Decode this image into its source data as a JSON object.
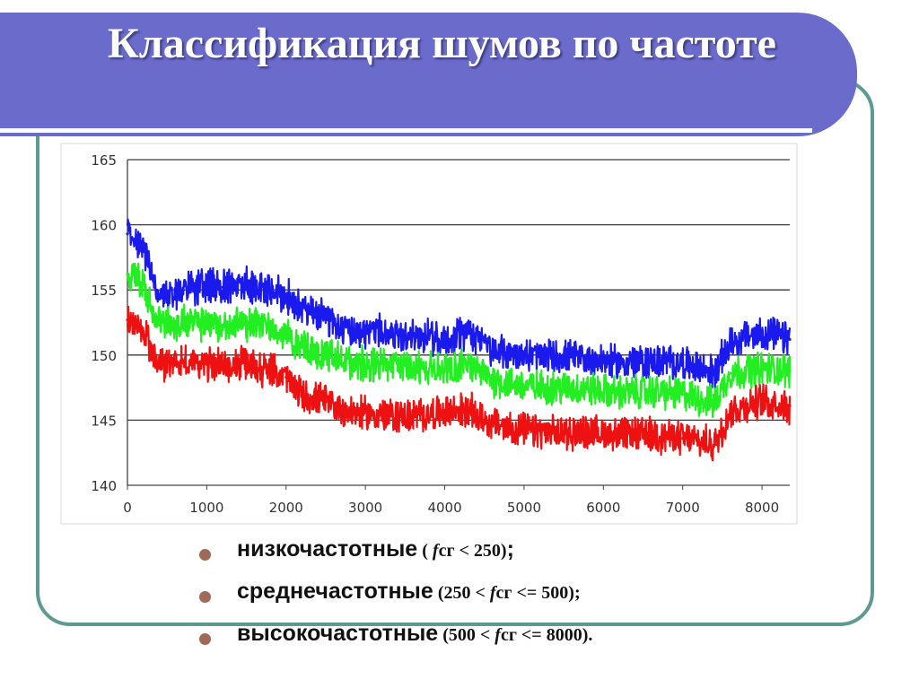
{
  "slide": {
    "title": "Классификация шумов по частоте"
  },
  "colors": {
    "title_bg": "#6b6bcc",
    "frame": "#5e9a92",
    "bullet": "#a06a58"
  },
  "chart_data": {
    "type": "line",
    "title": "",
    "xlabel": "",
    "ylabel": "",
    "xlim": [
      0,
      8350
    ],
    "ylim": [
      140,
      165
    ],
    "x_ticks": [
      "0",
      "1000",
      "2000",
      "3000",
      "4000",
      "5000",
      "6000",
      "7000",
      "8000"
    ],
    "y_ticks": [
      "140",
      "145",
      "150",
      "155",
      "160",
      "165"
    ],
    "grid": "horizontal",
    "series": [
      {
        "color": "#1a1aee",
        "x": [
          0,
          200,
          400,
          600,
          900,
          1200,
          1500,
          1800,
          2000,
          2200,
          2500,
          2800,
          3200,
          3600,
          4000,
          4300,
          4600,
          5000,
          5400,
          5800,
          6200,
          6600,
          7000,
          7400,
          7600,
          8000,
          8350
        ],
        "values": [
          159.3,
          158.3,
          154.3,
          154.8,
          155.3,
          155.2,
          155.5,
          154.8,
          154.6,
          153.6,
          152.8,
          152.0,
          151.8,
          151.5,
          151.2,
          151.8,
          150.3,
          150.0,
          149.9,
          149.7,
          149.4,
          149.5,
          149.4,
          148.6,
          151.0,
          151.7,
          151.2
        ]
      },
      {
        "color": "#22ee22",
        "x": [
          0,
          200,
          400,
          600,
          900,
          1200,
          1500,
          1800,
          2000,
          2200,
          2500,
          2800,
          3200,
          3600,
          4000,
          4300,
          4600,
          5000,
          5400,
          5800,
          6200,
          6600,
          7000,
          7400,
          7600,
          8000,
          8350
        ],
        "values": [
          156.2,
          155.5,
          152.3,
          152.5,
          152.4,
          152.3,
          152.4,
          152.0,
          151.6,
          150.6,
          150.0,
          149.4,
          149.3,
          149.0,
          148.9,
          149.3,
          148.1,
          147.6,
          147.5,
          147.4,
          147.1,
          147.2,
          147.0,
          146.3,
          148.6,
          149.0,
          148.8
        ]
      },
      {
        "color": "#ee1111",
        "x": [
          0,
          200,
          400,
          600,
          900,
          1200,
          1500,
          1800,
          2000,
          2200,
          2500,
          2800,
          3200,
          3600,
          4000,
          4300,
          4600,
          5000,
          5400,
          5800,
          6200,
          6600,
          7000,
          7400,
          7600,
          8000,
          8350
        ],
        "values": [
          152.7,
          151.8,
          149.2,
          149.5,
          149.4,
          149.2,
          149.3,
          148.8,
          148.3,
          146.9,
          146.4,
          145.6,
          145.4,
          145.3,
          145.6,
          145.8,
          144.7,
          144.2,
          144.0,
          144.1,
          143.9,
          143.9,
          143.6,
          143.1,
          145.7,
          146.5,
          146.1
        ]
      }
    ]
  },
  "legend": [
    {
      "label": "низкочастотные",
      "condition_prefix": " ( ",
      "condition_var": "f",
      "condition_suffix": "сг < 250)",
      "terminator": ";"
    },
    {
      "label": "среднечастотные",
      "condition_prefix": " (250 < ",
      "condition_var": "f",
      "condition_suffix": "сг <= 500);",
      "terminator": ""
    },
    {
      "label": "высокочастотные",
      "condition_prefix": " (500 < ",
      "condition_var": "f",
      "condition_suffix": "сг <= 8000).",
      "terminator": ""
    }
  ]
}
